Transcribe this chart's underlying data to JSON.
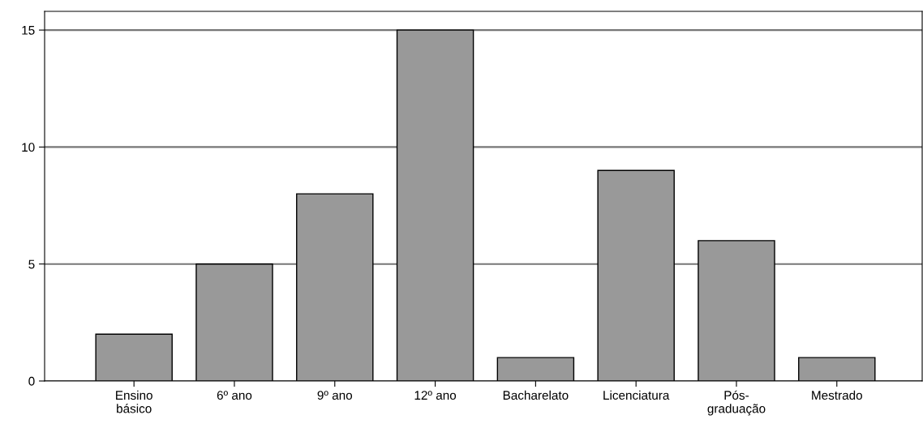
{
  "chart_data": {
    "type": "bar",
    "categories": [
      "Ensino\nbásico",
      "6º ano",
      "9º ano",
      "12º ano",
      "Bacharelato",
      "Licenciatura",
      "Pós-\ngraduação",
      "Mestrado"
    ],
    "values": [
      2,
      5,
      8,
      15,
      1,
      9,
      6,
      1
    ],
    "color": "#999999",
    "ylim": [
      0,
      15.8
    ],
    "yticks": [
      0,
      5,
      10,
      15
    ],
    "grid": "y"
  }
}
